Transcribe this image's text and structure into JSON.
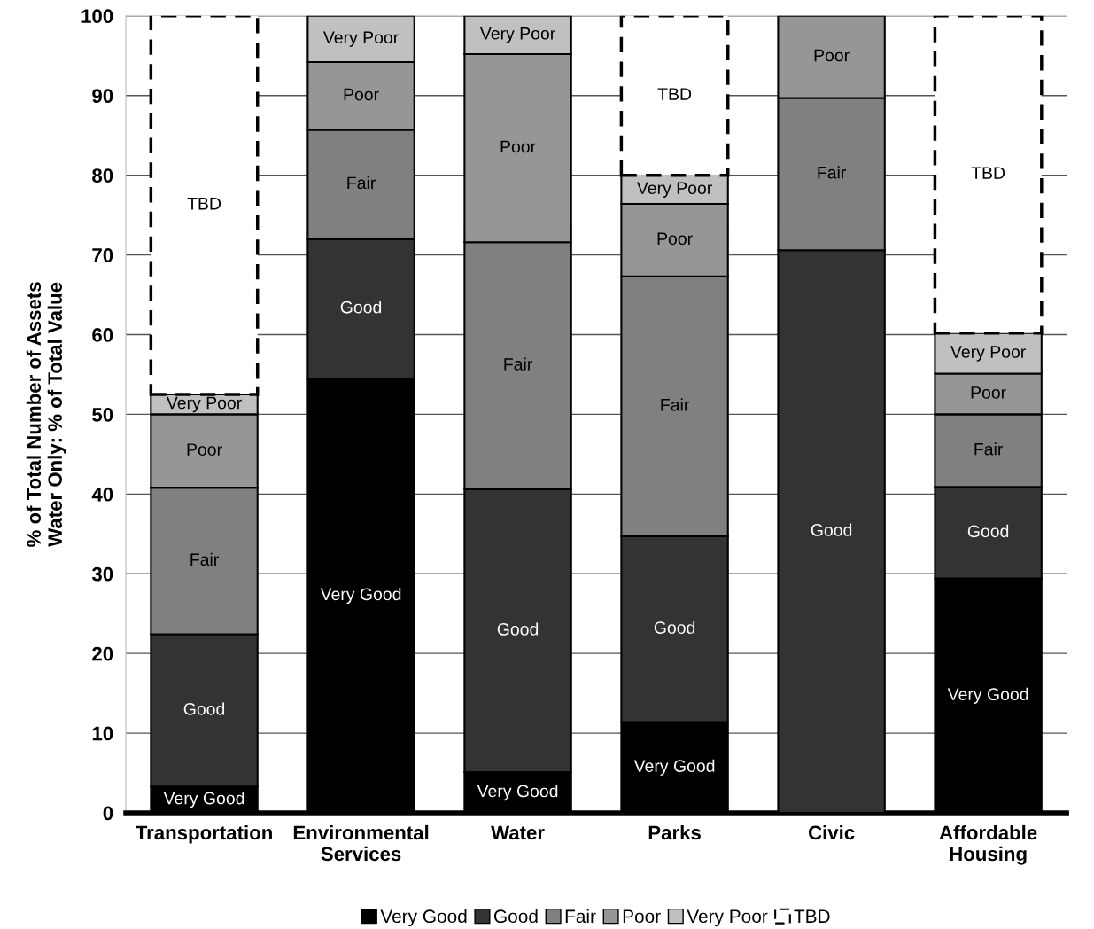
{
  "chart_data": {
    "type": "bar",
    "stacked": true,
    "categories": [
      "Transportation",
      "Environmental\nServices",
      "Water",
      "Parks",
      "Civic",
      "Affordable\nHousing"
    ],
    "ylabel": "% of Total Number of Assets\nWater Only: % of Total Value",
    "ylim": [
      0,
      100
    ],
    "yticks": [
      0,
      10,
      20,
      30,
      40,
      50,
      60,
      70,
      80,
      90,
      100
    ],
    "grid": "y",
    "legend": "bottom",
    "series": [
      {
        "name": "Very Good",
        "color": "#000000",
        "values": [
          3.3,
          54.5,
          5.1,
          11.4,
          null,
          29.4
        ],
        "value_labels": [
          "Very Good",
          "Very Good",
          "Very Good",
          "Very Good",
          null,
          "Very Good"
        ]
      },
      {
        "name": "Good",
        "color": "#333333",
        "values": [
          19.1,
          17.5,
          35.5,
          23.3,
          70.6,
          11.5
        ],
        "value_labels": [
          "Good",
          "Good",
          "Good",
          "Good",
          "Good",
          "Good"
        ]
      },
      {
        "name": "Fair",
        "color": "#808080",
        "values": [
          18.4,
          13.7,
          31.0,
          32.6,
          19.1,
          9.1
        ],
        "value_labels": [
          "Fair",
          "Fair",
          "Fair",
          "Fair",
          "Fair",
          "Fair"
        ]
      },
      {
        "name": "Poor",
        "color": "#969696",
        "values": [
          9.2,
          8.5,
          23.6,
          9.1,
          10.3,
          5.1
        ],
        "value_labels": [
          "Poor",
          "Poor",
          "Poor",
          "Poor",
          "Poor",
          "Poor"
        ]
      },
      {
        "name": "Very Poor",
        "color": "#c0c0c0",
        "values": [
          2.5,
          5.8,
          4.8,
          3.6,
          null,
          5.1
        ],
        "value_labels": [
          "Very Poor",
          "Very Poor",
          "Very Poor",
          "Very Poor",
          null,
          "Very Poor"
        ]
      },
      {
        "name": "TBD",
        "color": "#ffffff",
        "line_style": "dashed",
        "values": [
          47.5,
          null,
          null,
          20.0,
          null,
          39.8
        ],
        "value_labels": [
          "TBD",
          null,
          null,
          "TBD",
          null,
          "TBD"
        ]
      }
    ]
  }
}
